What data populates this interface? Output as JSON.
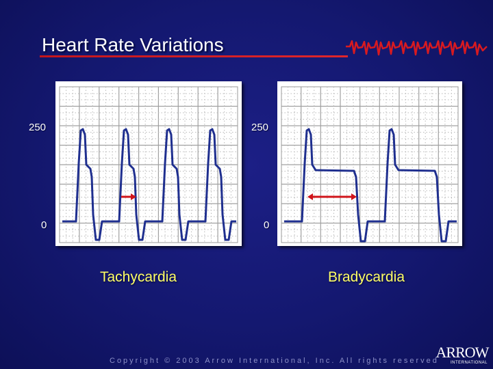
{
  "title": "Heart Rate Variations",
  "diagrams": [
    {
      "caption": "Tachycardia",
      "y_top_label": "250",
      "y_bottom_label": "0"
    },
    {
      "caption": "Bradycardia",
      "y_top_label": "250",
      "y_bottom_label": "0"
    }
  ],
  "colors": {
    "background": "#141870",
    "waveform": "#1f2f8f",
    "arrow": "#d0141a",
    "title_underline": "#c4161c",
    "caption": "#ffff66"
  },
  "footer": {
    "copyright": "Copyright © 2003 Arrow International, Inc.  All rights reserved"
  },
  "logo": {
    "text": "ARROW",
    "subtext": "INTERNATIONAL"
  }
}
